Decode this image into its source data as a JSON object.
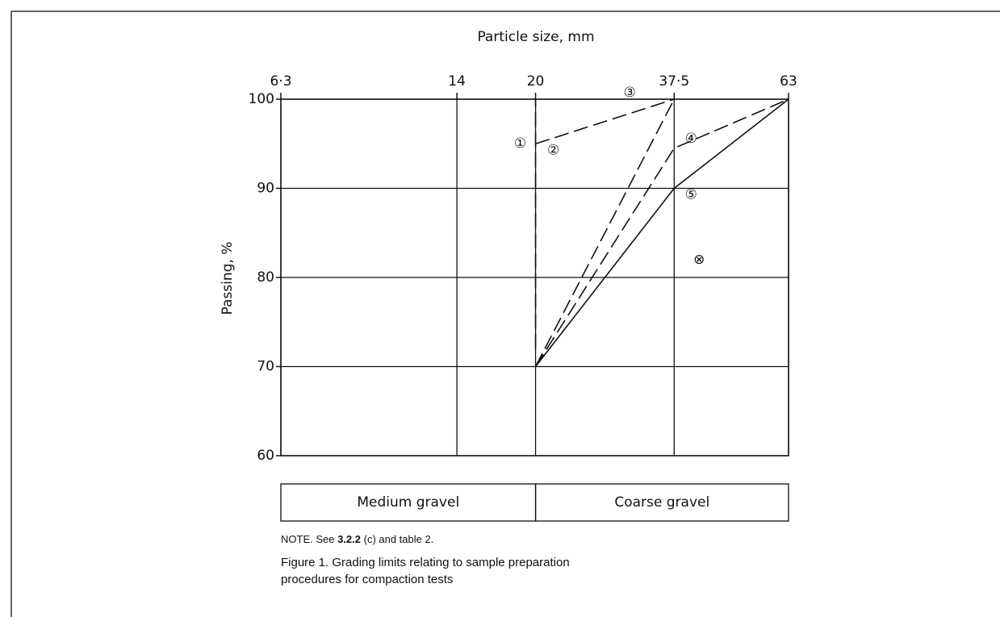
{
  "chart_data": {
    "type": "line",
    "xlabel": "Particle size, mm",
    "ylabel": "Passing, %",
    "xscale": "log",
    "xlim": [
      6.3,
      63
    ],
    "xticks": [
      {
        "value": 6.3,
        "label": "6·3"
      },
      14,
      20,
      {
        "value": 37.5,
        "label": "37·5"
      },
      63
    ],
    "ylim": [
      60,
      100
    ],
    "yticks": [
      60,
      70,
      80,
      90,
      100
    ],
    "grid": true,
    "series": [
      {
        "name": "①",
        "color": "#111111",
        "dash": "dashed",
        "x": [
          20,
          20
        ],
        "values": [
          72,
          100
        ]
      },
      {
        "name": "②",
        "color": "#111111",
        "dash": "dashed",
        "x": [
          20,
          37.5
        ],
        "values": [
          95,
          100
        ]
      },
      {
        "name": "③",
        "color": "#111111",
        "dash": "dashed",
        "x": [
          20,
          37.5
        ],
        "values": [
          70,
          100
        ]
      },
      {
        "name": "④",
        "color": "#111111",
        "dash": "dashed",
        "x": [
          20,
          37.5,
          63
        ],
        "values": [
          70,
          94.5,
          100
        ]
      },
      {
        "name": "⑤",
        "color": "#111111",
        "dash": "solid",
        "x": [
          20,
          37.5,
          63
        ],
        "values": [
          70,
          90,
          100
        ]
      }
    ],
    "annotations": [
      {
        "text": "⊗",
        "x": 42,
        "y": 82
      }
    ],
    "bands": [
      {
        "label": "Medium gravel",
        "x": [
          6.3,
          20
        ]
      },
      {
        "label": "Coarse gravel",
        "x": [
          20,
          63
        ]
      }
    ]
  },
  "note": [
    "NOTE. See ",
    "3.2.2",
    " (c) and table 2."
  ],
  "caption": [
    "Figure 1. Grading limits relating to sample preparation",
    "procedures for compaction tests"
  ]
}
